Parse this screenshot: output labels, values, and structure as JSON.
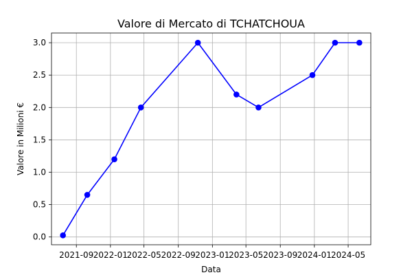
{
  "chart_data": {
    "type": "line",
    "title": "Valore di Mercato di TCHATCHOUA",
    "xlabel": "Data",
    "ylabel": "Valore in Milioni €",
    "x": [
      "2021-07-15",
      "2021-10-10",
      "2022-01-15",
      "2022-04-20",
      "2022-11-10",
      "2023-03-28",
      "2023-06-15",
      "2023-12-25",
      "2024-03-15",
      "2024-06-10"
    ],
    "series": [
      {
        "values": [
          0.025,
          0.65,
          1.2,
          2.0,
          3.0,
          2.2,
          2.0,
          2.5,
          3.0,
          3.0
        ]
      }
    ],
    "x_tick_labels": [
      "2021-09",
      "2022-01",
      "2022-05",
      "2022-09",
      "2023-01",
      "2023-05",
      "2023-09",
      "2024-01",
      "2024-05"
    ],
    "x_tick_dates": [
      "2021-09-01",
      "2022-01-01",
      "2022-05-01",
      "2022-09-01",
      "2023-01-01",
      "2023-05-01",
      "2023-09-01",
      "2024-01-01",
      "2024-05-01"
    ],
    "y_ticks": [
      0.0,
      0.5,
      1.0,
      1.5,
      2.0,
      2.5,
      3.0
    ],
    "y_tick_labels": [
      "0.0",
      "0.5",
      "1.0",
      "1.5",
      "2.0",
      "2.5",
      "3.0"
    ],
    "xlim": [
      "2021-06-04",
      "2024-07-21"
    ],
    "ylim": [
      -0.12,
      3.15
    ],
    "grid": true,
    "legend": false,
    "colors": {
      "line": "#0000ff",
      "marker": "#0000ff"
    }
  }
}
